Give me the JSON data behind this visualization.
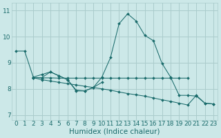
{
  "xlabel": "Humidex (Indice chaleur)",
  "xlim": [
    -0.5,
    23.5
  ],
  "ylim": [
    6.8,
    11.3
  ],
  "background_color": "#cce8e8",
  "grid_color": "#aacccc",
  "line_color": "#1a6b6b",
  "series": [
    {
      "x": [
        0,
        1,
        2,
        3,
        4,
        5,
        6,
        7,
        8,
        9,
        10,
        11,
        12,
        13,
        14,
        15,
        16,
        17,
        18,
        19,
        20,
        21,
        22,
        23
      ],
      "y": [
        9.45,
        9.45,
        8.45,
        8.55,
        8.65,
        8.5,
        8.35,
        7.92,
        7.92,
        8.05,
        8.45,
        9.2,
        10.5,
        10.88,
        10.6,
        10.05,
        9.85,
        8.98,
        8.45,
        7.75,
        7.75,
        7.72,
        7.45,
        7.42
      ]
    },
    {
      "x": [
        2,
        3,
        4,
        5,
        6,
        7,
        8,
        9,
        10,
        11,
        12,
        13,
        14,
        15,
        16,
        17,
        18,
        19,
        20
      ],
      "y": [
        8.43,
        8.42,
        8.42,
        8.41,
        8.41,
        8.41,
        8.41,
        8.41,
        8.41,
        8.41,
        8.41,
        8.41,
        8.41,
        8.41,
        8.41,
        8.41,
        8.41,
        8.41,
        8.41
      ]
    },
    {
      "x": [
        2,
        3,
        4,
        5,
        6,
        7,
        8,
        9,
        10,
        11,
        12,
        13,
        14,
        15,
        16,
        17,
        18,
        19,
        20,
        21,
        22,
        23
      ],
      "y": [
        8.43,
        8.35,
        8.3,
        8.25,
        8.2,
        8.15,
        8.1,
        8.05,
        8.0,
        7.95,
        7.88,
        7.82,
        7.77,
        7.72,
        7.65,
        7.58,
        7.52,
        7.45,
        7.38,
        7.75,
        7.45,
        7.42
      ]
    },
    {
      "x": [
        2,
        3,
        4,
        5,
        6,
        7,
        8,
        9,
        10
      ],
      "y": [
        8.43,
        8.43,
        8.65,
        8.5,
        8.35,
        7.95,
        7.92,
        8.05,
        8.25
      ]
    }
  ],
  "xticks": [
    0,
    1,
    2,
    3,
    4,
    5,
    6,
    7,
    8,
    9,
    10,
    11,
    12,
    13,
    14,
    15,
    16,
    17,
    18,
    19,
    20,
    21,
    22,
    23
  ],
  "yticks": [
    7,
    8,
    9,
    10,
    11
  ],
  "tick_fontsize": 6.5,
  "label_fontsize": 7.5
}
